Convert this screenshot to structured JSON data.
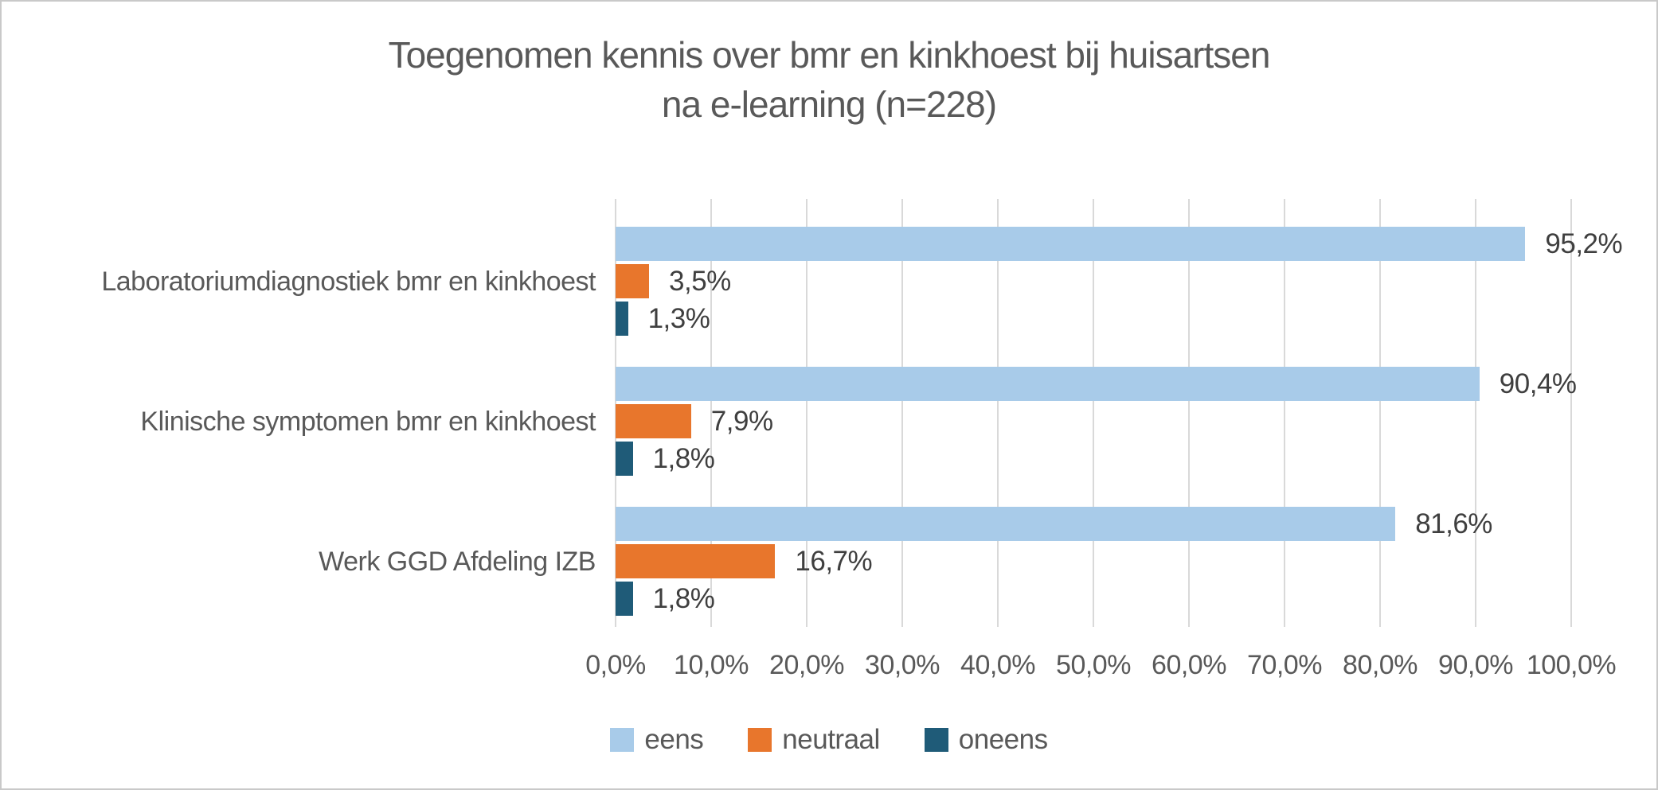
{
  "title": {
    "line1": "Toegenomen kennis over bmr en kinkhoest bij huisartsen",
    "line2": "na e-learning (n=228)"
  },
  "chart_data": {
    "type": "bar",
    "orientation": "horizontal",
    "title": "Toegenomen kennis over bmr en kinkhoest bij huisartsen na e-learning (n=228)",
    "categories": [
      "Laboratoriumdiagnostiek bmr en kinkhoest",
      "Klinische symptomen bmr en kinkhoest",
      "Werk GGD Afdeling IZB"
    ],
    "series": [
      {
        "name": "eens",
        "color": "#a8cbe9",
        "values": [
          95.2,
          90.4,
          81.6
        ],
        "labels": [
          "95,2%",
          "90,4%",
          "81,6%"
        ]
      },
      {
        "name": "neutraal",
        "color": "#e8762c",
        "values": [
          3.5,
          7.9,
          16.7
        ],
        "labels": [
          "3,5%",
          "7,9%",
          "16,7%"
        ]
      },
      {
        "name": "oneens",
        "color": "#1f5b78",
        "values": [
          1.3,
          1.8,
          1.8
        ],
        "labels": [
          "1,3%",
          "1,8%",
          "1,8%"
        ]
      }
    ],
    "x_axis": {
      "min": 0,
      "max": 100,
      "tick_step": 10,
      "tick_labels": [
        "0,0%",
        "10,0%",
        "20,0%",
        "30,0%",
        "40,0%",
        "50,0%",
        "60,0%",
        "70,0%",
        "80,0%",
        "90,0%",
        "100,0%"
      ],
      "grid": true
    },
    "legend": {
      "position": "bottom",
      "items": [
        "eens",
        "neutraal",
        "oneens"
      ]
    },
    "colors": {
      "grid": "#d9d9d9",
      "title_text": "#595959",
      "axis_text": "#595959",
      "data_label_text": "#3f3f3f",
      "border": "#c9c9c9"
    }
  }
}
